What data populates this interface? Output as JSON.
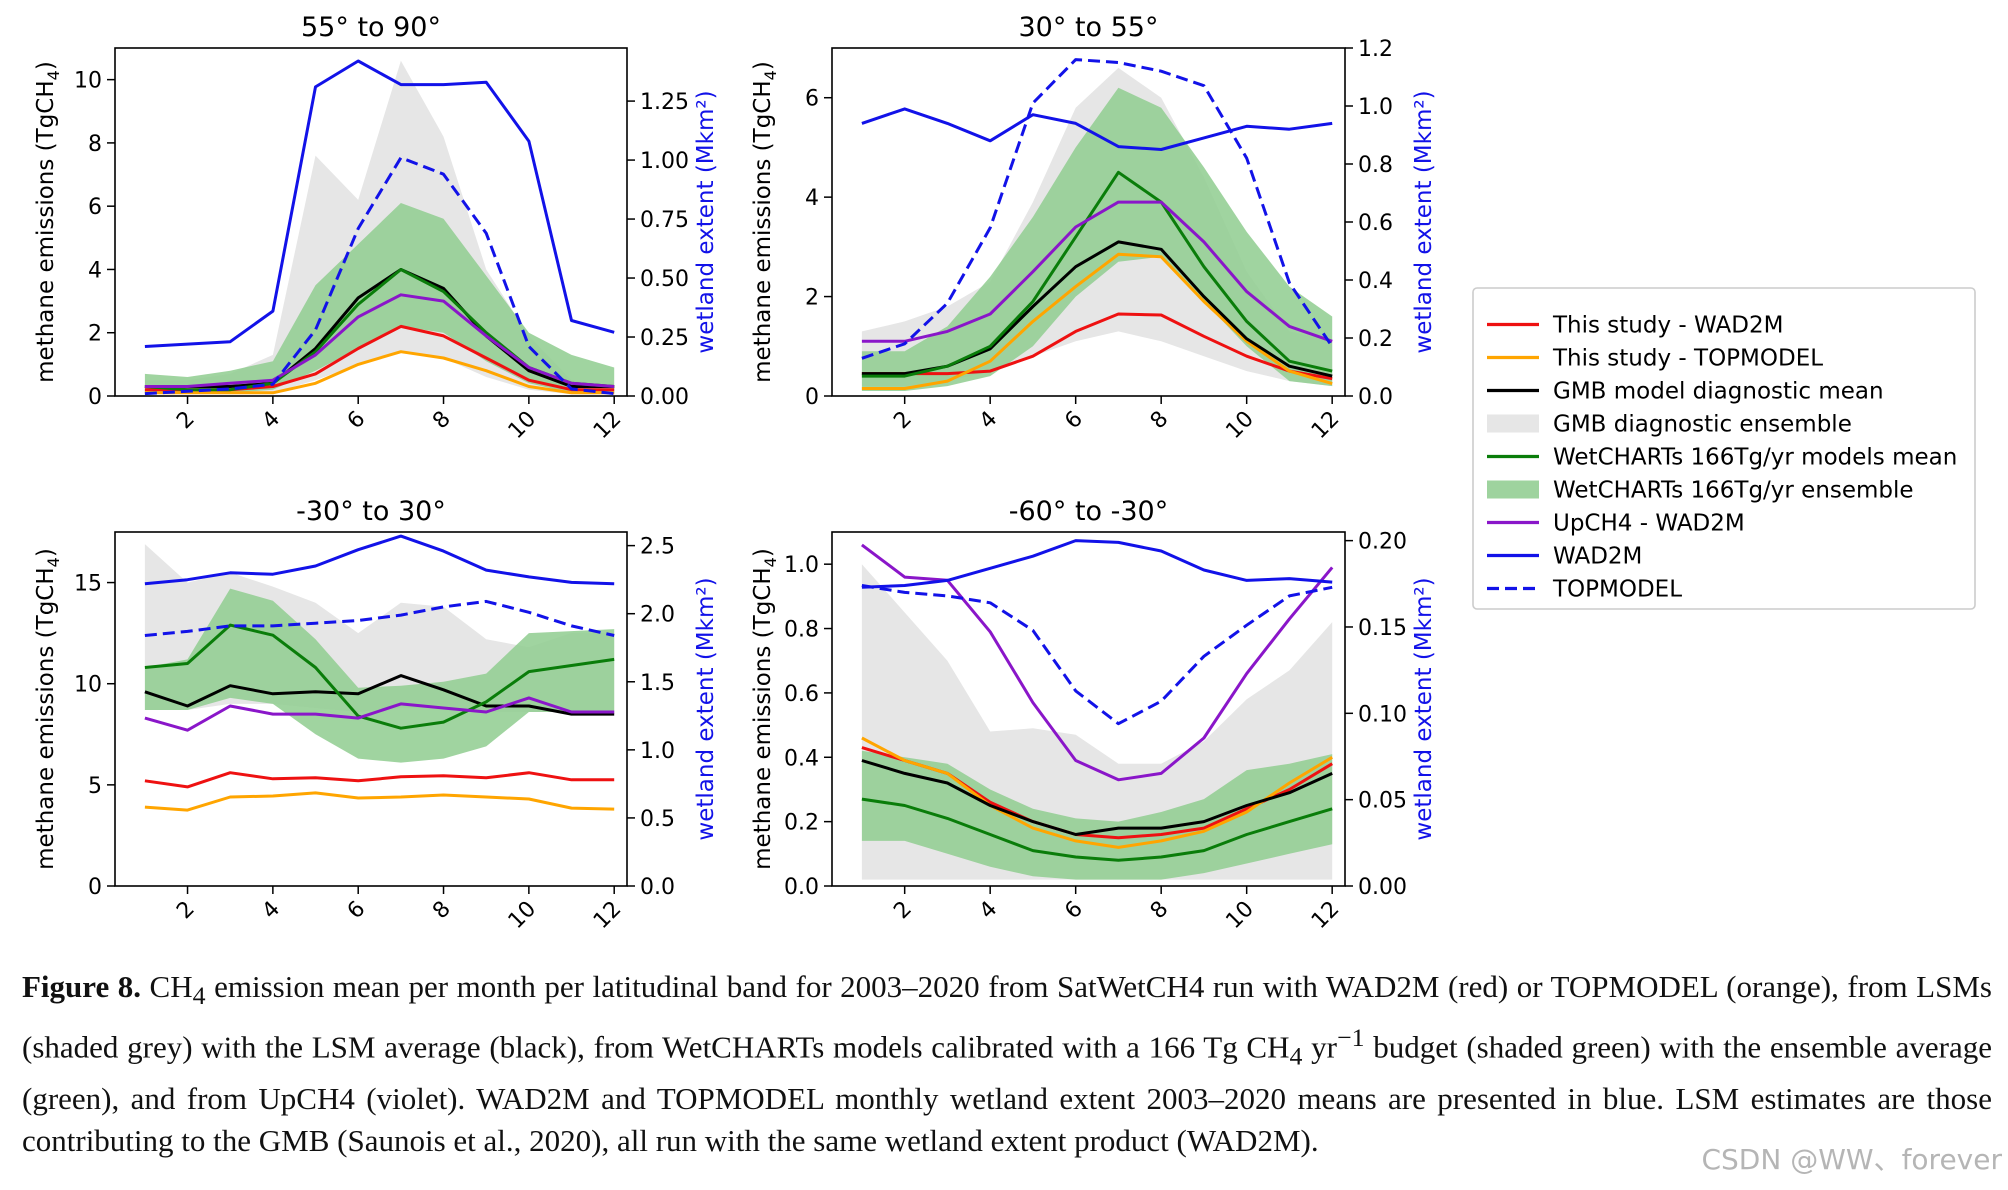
{
  "chart_data": [
    {
      "type": "line",
      "title": "55° to 90°",
      "ylabel": "methane emissions (TgCH",
      "ylabel_sub": "4",
      "ylabel_end": ")",
      "y2label": "wetland extent (Mkm²)",
      "x": [
        1,
        2,
        3,
        4,
        5,
        6,
        7,
        8,
        9,
        10,
        11,
        12
      ],
      "xlim": [
        0.3,
        12.3
      ],
      "xticks": [
        2,
        4,
        6,
        8,
        10,
        12
      ],
      "ylim": [
        0,
        11
      ],
      "yticks": [
        0,
        2,
        4,
        6,
        8,
        10
      ],
      "y2lim": [
        0,
        1.475
      ],
      "y2ticks": [
        0.0,
        0.25,
        0.5,
        0.75,
        1.0,
        1.25
      ],
      "y2ticklabels": [
        "0.00",
        "0.25",
        "0.50",
        "0.75",
        "1.00",
        "1.25"
      ],
      "grey_band": {
        "lower": [
          0.1,
          0.1,
          0.1,
          0.1,
          0.5,
          1.0,
          1.4,
          1.2,
          0.6,
          0.2,
          0.05,
          0.05
        ],
        "upper": [
          0.5,
          0.5,
          0.7,
          1.3,
          7.6,
          6.2,
          10.6,
          8.2,
          4.0,
          1.9,
          0.5,
          0.3
        ]
      },
      "green_band": {
        "lower": [
          0.1,
          0.1,
          0.1,
          0.2,
          0.8,
          1.5,
          2.2,
          2.0,
          1.1,
          0.4,
          0.1,
          0.1
        ],
        "upper": [
          0.7,
          0.6,
          0.8,
          1.1,
          3.5,
          4.8,
          6.1,
          5.6,
          3.8,
          2.0,
          1.3,
          0.9
        ]
      },
      "series": [
        {
          "name": "This study - WAD2M",
          "values": [
            0.2,
            0.2,
            0.2,
            0.3,
            0.7,
            1.5,
            2.2,
            1.9,
            1.2,
            0.5,
            0.2,
            0.2
          ]
        },
        {
          "name": "This study - TOPMODEL",
          "values": [
            0.1,
            0.1,
            0.1,
            0.1,
            0.4,
            1.0,
            1.4,
            1.2,
            0.8,
            0.3,
            0.1,
            0.1
          ]
        },
        {
          "name": "GMB model diagnostic mean",
          "values": [
            0.3,
            0.3,
            0.3,
            0.4,
            1.5,
            3.1,
            4.0,
            3.4,
            1.9,
            0.8,
            0.3,
            0.3
          ]
        },
        {
          "name": "WetCHARTs 166Tg/yr models mean",
          "values": [
            0.3,
            0.2,
            0.2,
            0.4,
            1.4,
            2.9,
            4.0,
            3.3,
            2.0,
            0.9,
            0.4,
            0.3
          ]
        },
        {
          "name": "UpCH4 - WAD2M",
          "values": [
            0.3,
            0.3,
            0.4,
            0.5,
            1.3,
            2.5,
            3.2,
            3.0,
            1.9,
            0.9,
            0.4,
            0.3
          ]
        },
        {
          "name": "WAD2M",
          "axis": "y2",
          "values": [
            0.21,
            0.22,
            0.23,
            0.36,
            1.31,
            1.42,
            1.32,
            1.32,
            1.33,
            1.08,
            0.32,
            0.27
          ]
        },
        {
          "name": "TOPMODEL",
          "axis": "y2",
          "values": [
            0.01,
            0.02,
            0.03,
            0.05,
            0.28,
            0.71,
            1.01,
            0.94,
            0.69,
            0.21,
            0.03,
            0.01
          ]
        }
      ]
    },
    {
      "type": "line",
      "title": "30° to 55°",
      "ylabel": "methane emissions (TgCH",
      "ylabel_sub": "4",
      "ylabel_end": ")",
      "y2label": "wetland extent (Mkm²)",
      "x": [
        1,
        2,
        3,
        4,
        5,
        6,
        7,
        8,
        9,
        10,
        11,
        12
      ],
      "xlim": [
        0.3,
        12.3
      ],
      "xticks": [
        2,
        4,
        6,
        8,
        10,
        12
      ],
      "ylim": [
        0,
        7
      ],
      "yticks": [
        0,
        2,
        4,
        6
      ],
      "y2lim": [
        0,
        1.2
      ],
      "y2ticks": [
        0.0,
        0.2,
        0.4,
        0.6,
        0.8,
        1.0,
        1.2
      ],
      "y2ticklabels": [
        "0.0",
        "0.2",
        "0.4",
        "0.6",
        "0.8",
        "1.0",
        "1.2"
      ],
      "grey_band": {
        "lower": [
          0.2,
          0.2,
          0.3,
          0.5,
          0.8,
          1.1,
          1.3,
          1.1,
          0.8,
          0.5,
          0.3,
          0.2
        ],
        "upper": [
          1.3,
          1.5,
          1.8,
          2.3,
          3.9,
          5.8,
          6.6,
          6.0,
          4.4,
          2.5,
          1.3,
          1.1
        ]
      },
      "green_band": {
        "lower": [
          0.1,
          0.1,
          0.2,
          0.4,
          1.0,
          2.0,
          2.7,
          2.8,
          1.9,
          1.0,
          0.3,
          0.2
        ],
        "upper": [
          0.9,
          0.9,
          1.4,
          2.4,
          3.6,
          5.0,
          6.2,
          5.8,
          4.6,
          3.3,
          2.2,
          1.6
        ]
      },
      "series": [
        {
          "name": "This study - WAD2M",
          "values": [
            0.45,
            0.45,
            0.45,
            0.5,
            0.8,
            1.3,
            1.65,
            1.63,
            1.2,
            0.8,
            0.5,
            0.35
          ]
        },
        {
          "name": "This study - TOPMODEL",
          "values": [
            0.15,
            0.15,
            0.3,
            0.7,
            1.5,
            2.2,
            2.85,
            2.8,
            1.9,
            1.1,
            0.5,
            0.25
          ]
        },
        {
          "name": "GMB model diagnostic mean",
          "values": [
            0.45,
            0.45,
            0.6,
            0.95,
            1.8,
            2.6,
            3.1,
            2.95,
            2.0,
            1.15,
            0.6,
            0.4
          ]
        },
        {
          "name": "WetCHARTs 166Tg/yr models mean",
          "values": [
            0.4,
            0.4,
            0.6,
            1.0,
            1.9,
            3.2,
            4.5,
            3.9,
            2.6,
            1.5,
            0.7,
            0.5
          ]
        },
        {
          "name": "UpCH4 - WAD2M",
          "values": [
            1.1,
            1.1,
            1.3,
            1.65,
            2.5,
            3.4,
            3.9,
            3.9,
            3.1,
            2.1,
            1.4,
            1.1
          ]
        },
        {
          "name": "WAD2M",
          "axis": "y2",
          "values": [
            0.94,
            0.99,
            0.94,
            0.88,
            0.97,
            0.94,
            0.86,
            0.85,
            0.89,
            0.93,
            0.92,
            0.94
          ]
        },
        {
          "name": "TOPMODEL",
          "axis": "y2",
          "values": [
            0.13,
            0.18,
            0.32,
            0.58,
            1.01,
            1.16,
            1.15,
            1.12,
            1.07,
            0.82,
            0.39,
            0.17
          ]
        }
      ]
    },
    {
      "type": "line",
      "title": "-30° to 30°",
      "ylabel": "methane emissions (TgCH",
      "ylabel_sub": "4",
      "ylabel_end": ")",
      "y2label": "wetland extent (Mkm²)",
      "x": [
        1,
        2,
        3,
        4,
        5,
        6,
        7,
        8,
        9,
        10,
        11,
        12
      ],
      "xlim": [
        0.3,
        12.3
      ],
      "xticks": [
        2,
        4,
        6,
        8,
        10,
        12
      ],
      "ylim": [
        0,
        17.5
      ],
      "yticks": [
        0,
        5,
        10,
        15
      ],
      "y2lim": [
        0,
        2.6
      ],
      "y2ticks": [
        0.0,
        0.5,
        1.0,
        1.5,
        2.0,
        2.5
      ],
      "y2ticklabels": [
        "0.0",
        "0.5",
        "1.0",
        "1.5",
        "2.0",
        "2.5"
      ],
      "grey_band": {
        "lower": [
          8.7,
          8.7,
          9.0,
          9.0,
          8.8,
          8.6,
          8.8,
          8.8,
          8.6,
          8.6,
          8.6,
          8.6
        ],
        "upper": [
          16.9,
          15.0,
          15.5,
          14.8,
          14.0,
          12.5,
          14.0,
          13.8,
          12.2,
          11.8,
          12.5,
          12.5
        ]
      },
      "green_band": {
        "lower": [
          8.7,
          8.7,
          9.3,
          9.0,
          7.5,
          6.3,
          6.1,
          6.3,
          6.9,
          8.6,
          8.6,
          8.6
        ],
        "upper": [
          10.8,
          11.2,
          14.7,
          14.1,
          12.2,
          9.8,
          9.9,
          10.1,
          10.5,
          12.5,
          12.6,
          12.7
        ]
      },
      "series": [
        {
          "name": "This study - WAD2M",
          "values": [
            5.2,
            4.9,
            5.6,
            5.3,
            5.35,
            5.2,
            5.4,
            5.45,
            5.35,
            5.6,
            5.25,
            5.25
          ]
        },
        {
          "name": "This study - TOPMODEL",
          "values": [
            3.9,
            3.75,
            4.4,
            4.45,
            4.6,
            4.35,
            4.4,
            4.5,
            4.4,
            4.3,
            3.85,
            3.8
          ]
        },
        {
          "name": "GMB model diagnostic mean",
          "values": [
            9.6,
            8.9,
            9.9,
            9.5,
            9.6,
            9.5,
            10.4,
            9.7,
            8.9,
            8.9,
            8.5,
            8.5
          ]
        },
        {
          "name": "WetCHARTs 166Tg/yr models mean",
          "values": [
            10.8,
            11.0,
            12.9,
            12.4,
            10.8,
            8.4,
            7.8,
            8.1,
            9.1,
            10.6,
            10.9,
            11.2
          ]
        },
        {
          "name": "UpCH4 - WAD2M",
          "values": [
            8.3,
            7.7,
            8.9,
            8.5,
            8.5,
            8.3,
            9.0,
            8.8,
            8.6,
            9.3,
            8.6,
            8.6
          ]
        },
        {
          "name": "WAD2M",
          "axis": "y2",
          "values": [
            2.22,
            2.25,
            2.3,
            2.29,
            2.35,
            2.47,
            2.57,
            2.46,
            2.32,
            2.27,
            2.23,
            2.22
          ]
        },
        {
          "name": "TOPMODEL",
          "axis": "y2",
          "values": [
            1.84,
            1.87,
            1.91,
            1.91,
            1.93,
            1.95,
            1.99,
            2.05,
            2.09,
            2.01,
            1.91,
            1.84
          ]
        }
      ]
    },
    {
      "type": "line",
      "title": "-60° to -30°",
      "ylabel": "methane emissions (TgCH",
      "ylabel_sub": "4",
      "ylabel_end": ")",
      "y2label": "wetland extent (Mkm²)",
      "x": [
        1,
        2,
        3,
        4,
        5,
        6,
        7,
        8,
        9,
        10,
        11,
        12
      ],
      "xlim": [
        0.3,
        12.3
      ],
      "xticks": [
        2,
        4,
        6,
        8,
        10,
        12
      ],
      "ylim": [
        0,
        1.1
      ],
      "yticks": [
        0,
        0.2,
        0.4,
        0.6,
        0.8,
        1.0
      ],
      "yticklabels": [
        "0.0",
        "0.2",
        "0.4",
        "0.6",
        "0.8",
        "1.0"
      ],
      "y2lim": [
        0,
        0.205
      ],
      "y2ticks": [
        0.0,
        0.05,
        0.1,
        0.15,
        0.2
      ],
      "y2ticklabels": [
        "0.00",
        "0.05",
        "0.10",
        "0.15",
        "0.20"
      ],
      "grey_band": {
        "lower": [
          0.02,
          0.02,
          0.02,
          0.02,
          0.02,
          0.02,
          0.02,
          0.02,
          0.02,
          0.02,
          0.02,
          0.02
        ],
        "upper": [
          1.0,
          0.85,
          0.7,
          0.48,
          0.49,
          0.47,
          0.38,
          0.38,
          0.45,
          0.58,
          0.67,
          0.82
        ]
      },
      "green_band": {
        "lower": [
          0.14,
          0.14,
          0.1,
          0.06,
          0.03,
          0.02,
          0.02,
          0.02,
          0.04,
          0.07,
          0.1,
          0.13
        ],
        "upper": [
          0.42,
          0.4,
          0.38,
          0.3,
          0.24,
          0.21,
          0.2,
          0.23,
          0.27,
          0.36,
          0.38,
          0.41
        ]
      },
      "series": [
        {
          "name": "This study - WAD2M",
          "values": [
            0.43,
            0.39,
            0.35,
            0.26,
            0.2,
            0.16,
            0.15,
            0.16,
            0.18,
            0.24,
            0.3,
            0.38
          ]
        },
        {
          "name": "This study - TOPMODEL",
          "values": [
            0.46,
            0.39,
            0.35,
            0.25,
            0.18,
            0.14,
            0.12,
            0.14,
            0.17,
            0.23,
            0.32,
            0.4
          ]
        },
        {
          "name": "GMB model diagnostic mean",
          "values": [
            0.39,
            0.35,
            0.32,
            0.25,
            0.2,
            0.16,
            0.18,
            0.18,
            0.2,
            0.25,
            0.29,
            0.35
          ]
        },
        {
          "name": "WetCHARTs 166Tg/yr models mean",
          "values": [
            0.27,
            0.25,
            0.21,
            0.16,
            0.11,
            0.09,
            0.08,
            0.09,
            0.11,
            0.16,
            0.2,
            0.24
          ]
        },
        {
          "name": "UpCH4 - WAD2M",
          "values": [
            1.06,
            0.96,
            0.95,
            0.79,
            0.57,
            0.39,
            0.33,
            0.35,
            0.46,
            0.66,
            0.83,
            0.99
          ]
        },
        {
          "name": "WAD2M",
          "axis": "y2",
          "values": [
            0.173,
            0.174,
            0.177,
            0.184,
            0.191,
            0.2,
            0.199,
            0.194,
            0.183,
            0.177,
            0.178,
            0.176
          ]
        },
        {
          "name": "TOPMODEL",
          "axis": "y2",
          "values": [
            0.174,
            0.17,
            0.168,
            0.164,
            0.148,
            0.113,
            0.094,
            0.107,
            0.133,
            0.151,
            0.168,
            0.173
          ]
        }
      ]
    }
  ],
  "legend": {
    "placement": "right",
    "entries": [
      {
        "label": "This study - WAD2M",
        "kind": "line",
        "color": "#ee1111",
        "dash": false
      },
      {
        "label": "This study - TOPMODEL",
        "kind": "line",
        "color": "#ffa500",
        "dash": false
      },
      {
        "label": "GMB model diagnostic mean",
        "kind": "line",
        "color": "#000000",
        "dash": false
      },
      {
        "label": "GMB diagnostic ensemble",
        "kind": "patch",
        "color": "#e6e6e6",
        "dash": false
      },
      {
        "label": "WetCHARTs 166Tg/yr models mean",
        "kind": "line",
        "color": "#0a7d0a",
        "dash": false
      },
      {
        "label": "WetCHARTs 166Tg/yr ensemble",
        "kind": "patch",
        "color": "#9ed39e",
        "dash": false
      },
      {
        "label": "UpCH4 - WAD2M",
        "kind": "line",
        "color": "#8a16c9",
        "dash": false
      },
      {
        "label": "WAD2M",
        "kind": "line",
        "color": "#1212e8",
        "dash": false
      },
      {
        "label": "TOPMODEL",
        "kind": "line",
        "color": "#1212e8",
        "dash": true
      }
    ]
  },
  "colors": {
    "This study - WAD2M": "#ee1111",
    "This study - TOPMODEL": "#ffa500",
    "GMB model diagnostic mean": "#000000",
    "WetCHARTs 166Tg/yr models mean": "#0a7d0a",
    "UpCH4 - WAD2M": "#8a16c9",
    "WAD2M": "#1212e8",
    "TOPMODEL": "#1212e8",
    "grey_band": "#e6e6e6",
    "green_band": "#8fcd8f",
    "y2label": "#1212e8"
  },
  "caption": {
    "label": "Figure 8.",
    "parts": [
      " CH",
      "4",
      " emission mean per month per latitudinal band for 2003–2020 from SatWetCH4 run with WAD2M (red) or TOPMODEL (orange), from LSMs (shaded grey) with the LSM average (black), from WetCHARTs models calibrated with a 166 Tg CH",
      "4",
      " yr",
      "−1",
      " budget (shaded green) with the ensemble average (green), and from UpCH4 (violet). WAD2M and TOPMODEL monthly wetland extent 2003–2020 means are presented in blue. LSM estimates are those contributing to the GMB (Saunois et al., 2020), all run with the same wetland extent product (WAD2M)."
    ]
  },
  "watermark": "CSDN @WW、forever"
}
